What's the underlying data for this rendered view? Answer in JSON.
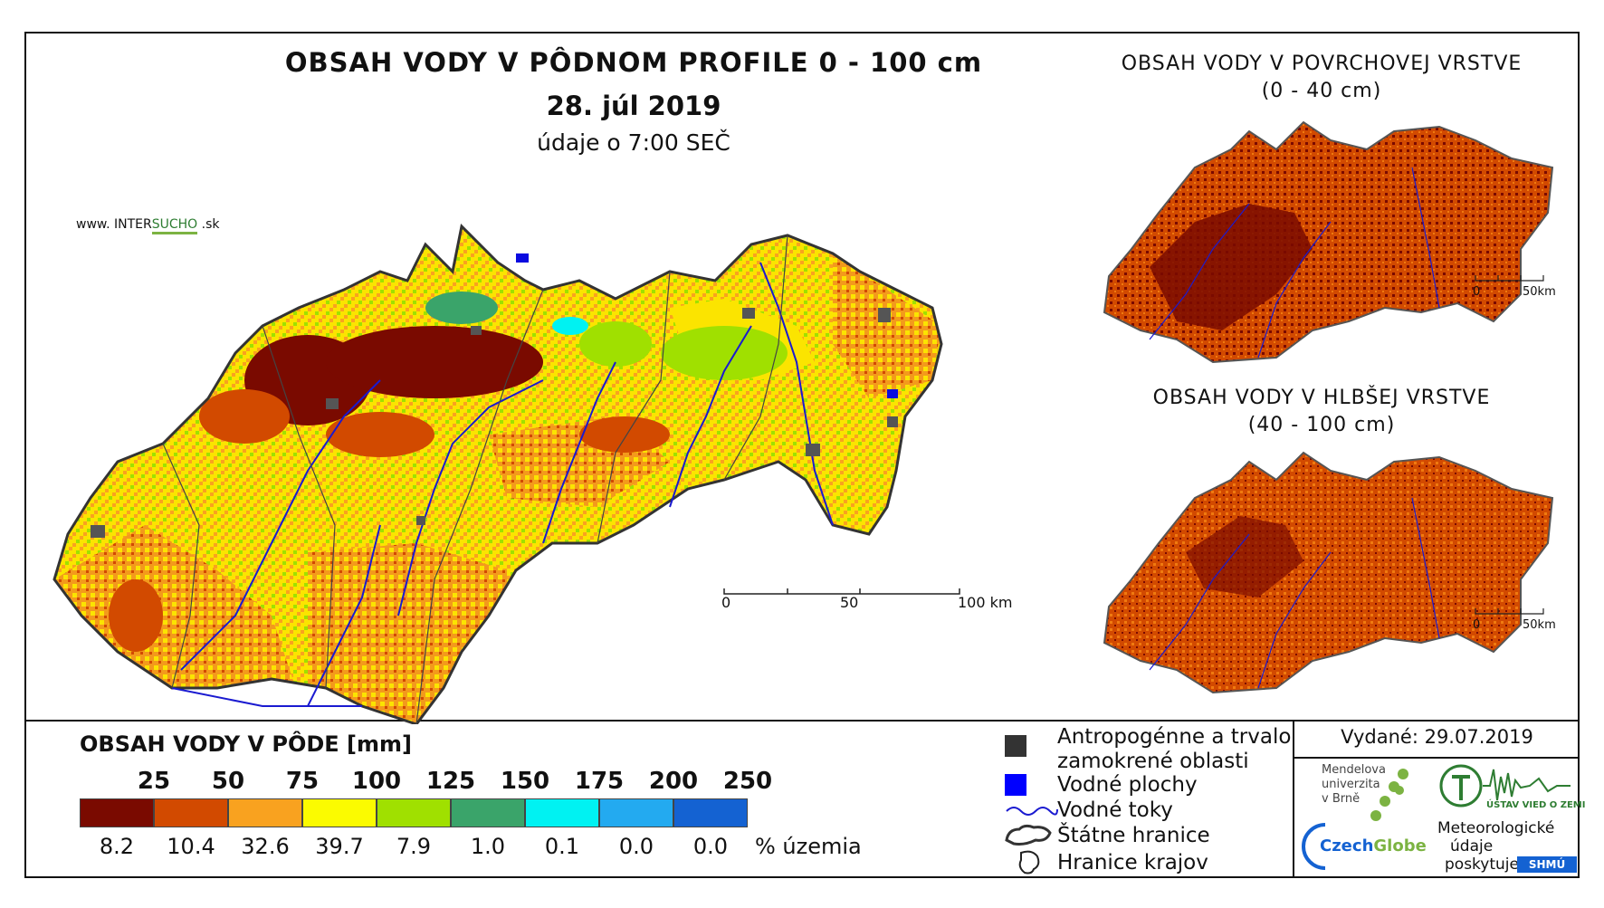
{
  "header": {
    "title": "OBSAH VODY V PÔDNOM PROFILE 0 - 100 cm",
    "date": "28. júl 2019",
    "time_note": "údaje o 7:00 SEČ",
    "website_prefix": "www. INTER",
    "website_highlight": "SUCHO",
    "website_suffix": " .sk"
  },
  "main_map": {
    "scale_labels": [
      "0",
      "50",
      "100 km"
    ]
  },
  "inset_top": {
    "title_line1": "OBSAH VODY V POVRCHOVEJ VRSTVE",
    "title_line2": "(0 - 40 cm)",
    "scale_labels": [
      "0",
      "50km"
    ]
  },
  "inset_bottom": {
    "title_line1": "OBSAH VODY V HLBŠEJ VRSTVE",
    "title_line2": "(40 - 100 cm)",
    "scale_labels": [
      "0",
      "50km"
    ]
  },
  "legend": {
    "title": "OBSAH VODY V PÔDE [mm]",
    "class_labels": [
      "25",
      "50",
      "75",
      "100",
      "125",
      "150",
      "175",
      "200",
      "250"
    ],
    "colors": [
      "#7a0a00",
      "#d24a00",
      "#f9a21f",
      "#fbfb00",
      "#a0e000",
      "#3aa46a",
      "#00f2f2",
      "#23aaf0",
      "#1462d2"
    ],
    "percentages": [
      "8.2",
      "10.4",
      "32.6",
      "39.7",
      "7.9",
      "1.0",
      "0.1",
      "0.0",
      "0.0"
    ],
    "percent_unit": "% územia"
  },
  "symbol_legend": {
    "anthropogenic_line1": "Antropogénne a trvalo",
    "anthropogenic_line2": "zamokrené oblasti",
    "water_bodies": "Vodné plochy",
    "rivers": "Vodné toky",
    "state_border": "Štátne hranice",
    "region_border": "Hranice krajov"
  },
  "footer": {
    "issued": "Vydané: 29.07.2019",
    "mendel_line1": "Mendelova",
    "mendel_line2": "univerzita",
    "mendel_line3": "v Brně",
    "czechglobe_a": "Czech",
    "czechglobe_b": "Globe",
    "uvz": "ÚSTAV VIED O ZEMI",
    "meteo_line1": "Meteorologické",
    "meteo_line2": "údaje",
    "meteo_line3": "poskytuje:",
    "shmu": "SHMÚ"
  }
}
